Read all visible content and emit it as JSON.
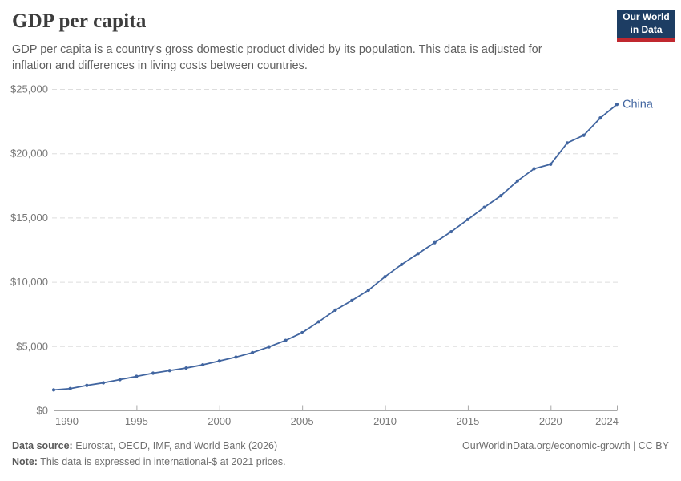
{
  "header": {
    "title": "GDP per capita",
    "subtitle": "GDP per capita is a country's gross domestic product divided by its population. This data is adjusted for inflation and differences in living costs between countries.",
    "logo": {
      "line1": "Our World",
      "line2": "in Data"
    }
  },
  "chart_data": {
    "type": "line",
    "title": "GDP per capita",
    "xlabel": "",
    "ylabel": "",
    "xlim": [
      1990,
      2024
    ],
    "ylim": [
      0,
      25000
    ],
    "x_ticks": [
      1990,
      1995,
      2000,
      2005,
      2010,
      2015,
      2020,
      2024
    ],
    "y_ticks": [
      0,
      5000,
      10000,
      15000,
      20000,
      25000
    ],
    "y_tick_prefix": "$",
    "grid": "horizontal-dashed",
    "legend_position": "end-of-line-label",
    "markers": true,
    "x": [
      1990,
      1991,
      1992,
      1993,
      1994,
      1995,
      1996,
      1997,
      1998,
      1999,
      2000,
      2001,
      2002,
      2003,
      2004,
      2005,
      2006,
      2007,
      2008,
      2009,
      2010,
      2011,
      2012,
      2013,
      2014,
      2015,
      2016,
      2017,
      2018,
      2019,
      2020,
      2021,
      2022,
      2023,
      2024
    ],
    "series": [
      {
        "name": "China",
        "color": "#4165a0",
        "values": [
          1600,
          1700,
          1950,
          2150,
          2400,
          2650,
          2900,
          3100,
          3300,
          3550,
          3850,
          4150,
          4500,
          4950,
          5450,
          6050,
          6900,
          7800,
          8550,
          9350,
          10400,
          11350,
          12200,
          13050,
          13900,
          14850,
          15800,
          16700,
          17850,
          18800,
          19150,
          20800,
          21400,
          22750,
          23800
        ]
      }
    ]
  },
  "footer": {
    "datasource_label": "Data source:",
    "datasource_text": " Eurostat, OECD, IMF, and World Bank (2026)",
    "note_label": "Note:",
    "note_text": " This data is expressed in international-$ at 2021 prices.",
    "origin_link": "OurWorldinData.org/economic-growth | CC BY"
  },
  "colors": {
    "series_line": "#4165a0",
    "title_text": "#3d3d3d",
    "subtitle_text": "#5f5f5f",
    "axis_text": "#777777",
    "gridline": "#dddddd",
    "axis_line": "#a8a8a8",
    "logo_bg": "#1d3d63",
    "logo_stripe": "#c0282f",
    "footer_text": "#6e6e6e"
  }
}
